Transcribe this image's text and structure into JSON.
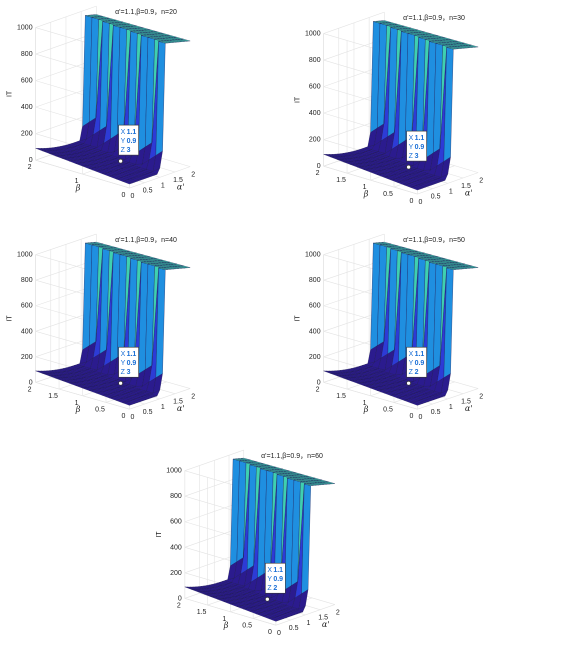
{
  "chart_data": [
    {
      "type": "surface",
      "title": "α'=1.1,β=0.9，n=20",
      "xlabel": "α'",
      "ylabel": "β",
      "zlabel": "IT",
      "xlim": [
        0,
        2
      ],
      "ylim": [
        0,
        2
      ],
      "zlim": [
        0,
        1000
      ],
      "x_ticks": [
        "0",
        "0.5",
        "1",
        "1.5",
        "2"
      ],
      "y_ticks": [
        "0",
        "1",
        "2"
      ],
      "z_ticks": [
        "0",
        "200",
        "400",
        "600",
        "800",
        "1000"
      ],
      "datatip": {
        "x_label": "X",
        "x": "1.1",
        "y_label": "Y",
        "y": "0.9",
        "z_label": "Z",
        "z": "3"
      },
      "colormap": [
        "#2b1b8e",
        "#2d3bd6",
        "#1f8fe0",
        "#3fd0b0",
        "#f5f022"
      ]
    },
    {
      "type": "surface",
      "title": "α'=1.1,β=0.9，n=30",
      "xlabel": "α'",
      "ylabel": "β",
      "zlabel": "IT",
      "xlim": [
        0,
        2
      ],
      "ylim": [
        0,
        2
      ],
      "zlim": [
        0,
        1000
      ],
      "x_ticks": [
        "0",
        "0.5",
        "1",
        "1.5",
        "2"
      ],
      "y_ticks": [
        "0",
        "0.5",
        "1",
        "1.5",
        "2"
      ],
      "z_ticks": [
        "0",
        "200",
        "400",
        "600",
        "800",
        "1000"
      ],
      "datatip": {
        "x_label": "X",
        "x": "1.1",
        "y_label": "Y",
        "y": "0.9",
        "z_label": "Z",
        "z": "3"
      },
      "colormap": [
        "#2b1b8e",
        "#2d3bd6",
        "#1f8fe0",
        "#3fd0b0",
        "#f5f022"
      ]
    },
    {
      "type": "surface",
      "title": "α'=1.1,β=0.9，n=40",
      "xlabel": "α'",
      "ylabel": "β",
      "zlabel": "IT",
      "xlim": [
        0,
        2
      ],
      "ylim": [
        0,
        2
      ],
      "zlim": [
        0,
        1000
      ],
      "x_ticks": [
        "0",
        "0.5",
        "1",
        "1.5",
        "2"
      ],
      "y_ticks": [
        "0",
        "0.5",
        "1",
        "1.5",
        "2"
      ],
      "z_ticks": [
        "0",
        "200",
        "400",
        "600",
        "800",
        "1000"
      ],
      "datatip": {
        "x_label": "X",
        "x": "1.1",
        "y_label": "Y",
        "y": "0.9",
        "z_label": "Z",
        "z": "3"
      },
      "colormap": [
        "#2b1b8e",
        "#2d3bd6",
        "#1f8fe0",
        "#3fd0b0",
        "#f5f022"
      ]
    },
    {
      "type": "surface",
      "title": "α'=1.1,β=0.9，n=50",
      "xlabel": "α'",
      "ylabel": "β",
      "zlabel": "IT",
      "xlim": [
        0,
        2
      ],
      "ylim": [
        0,
        2
      ],
      "zlim": [
        0,
        1000
      ],
      "x_ticks": [
        "0",
        "0.5",
        "1",
        "1.5",
        "2"
      ],
      "y_ticks": [
        "0",
        "0.5",
        "1",
        "1.5",
        "2"
      ],
      "z_ticks": [
        "0",
        "200",
        "400",
        "600",
        "800",
        "1000"
      ],
      "datatip": {
        "x_label": "X",
        "x": "1.1",
        "y_label": "Y",
        "y": "0.9",
        "z_label": "Z",
        "z": "2"
      },
      "colormap": [
        "#2b1b8e",
        "#2d3bd6",
        "#1f8fe0",
        "#3fd0b0",
        "#f5f022"
      ]
    },
    {
      "type": "surface",
      "title": "α'=1.1,β=0.9，n=60",
      "xlabel": "α'",
      "ylabel": "β",
      "zlabel": "IT",
      "xlim": [
        0,
        2
      ],
      "ylim": [
        0,
        2
      ],
      "zlim": [
        0,
        1000
      ],
      "x_ticks": [
        "0",
        "0.5",
        "1",
        "1.5",
        "2"
      ],
      "y_ticks": [
        "0",
        "0.5",
        "1",
        "1.5",
        "2"
      ],
      "z_ticks": [
        "0",
        "200",
        "400",
        "600",
        "800",
        "1000"
      ],
      "datatip": {
        "x_label": "X",
        "x": "1.1",
        "y_label": "Y",
        "y": "0.9",
        "z_label": "Z",
        "z": "2"
      },
      "colormap": [
        "#2b1b8e",
        "#2d3bd6",
        "#1f8fe0",
        "#3fd0b0",
        "#f5f022"
      ]
    }
  ]
}
